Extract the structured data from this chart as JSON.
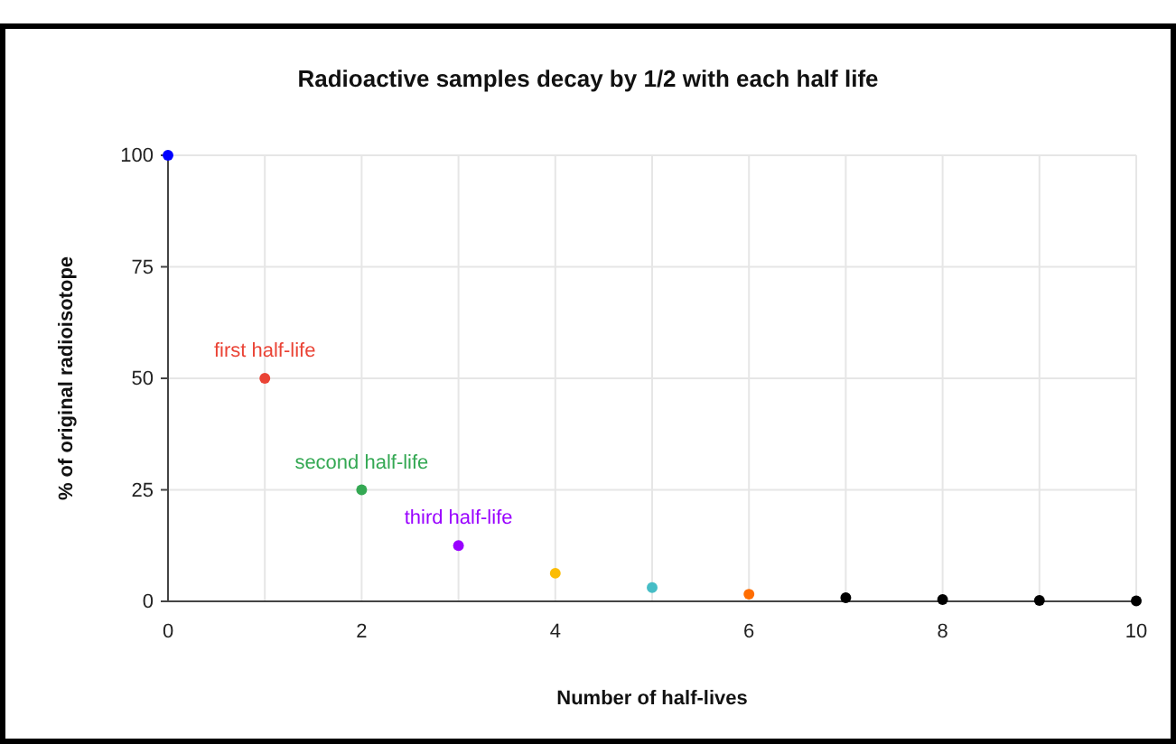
{
  "chart_data": {
    "type": "scatter",
    "title": "Radioactive samples decay by 1/2 with each half life",
    "xlabel": "Number of half-lives",
    "ylabel": "% of original radioisotope",
    "x": [
      0,
      1,
      2,
      3,
      4,
      5,
      6,
      7,
      8,
      9,
      10
    ],
    "values": [
      100,
      50,
      25,
      12.5,
      6.3,
      3.1,
      1.6,
      0.8,
      0.4,
      0.2,
      0.1
    ],
    "colors": [
      "#0000ff",
      "#ea4335",
      "#34a853",
      "#9900ff",
      "#fbbc04",
      "#46bdc6",
      "#ff6d01",
      "#000000",
      "#000000",
      "#000000",
      "#000000"
    ],
    "xlim": [
      0,
      10
    ],
    "xticks": [
      0,
      {
        "value": 1,
        "label": null
      },
      2,
      {
        "value": 3,
        "label": null
      },
      4,
      {
        "value": 5,
        "label": null
      },
      6,
      {
        "value": 7,
        "label": null
      },
      8,
      {
        "value": 9,
        "label": null
      },
      10
    ],
    "ylim": [
      0,
      100
    ],
    "yticks": [
      0,
      25,
      50,
      75,
      100
    ],
    "grid": true,
    "marker": "circle",
    "annotations": [
      {
        "text": "first half-life",
        "x": 1,
        "y": 50
      },
      {
        "text": "second half-life",
        "x": 2,
        "y": 25
      },
      {
        "text": "third half-life",
        "x": 3,
        "y": 12.5
      }
    ]
  }
}
